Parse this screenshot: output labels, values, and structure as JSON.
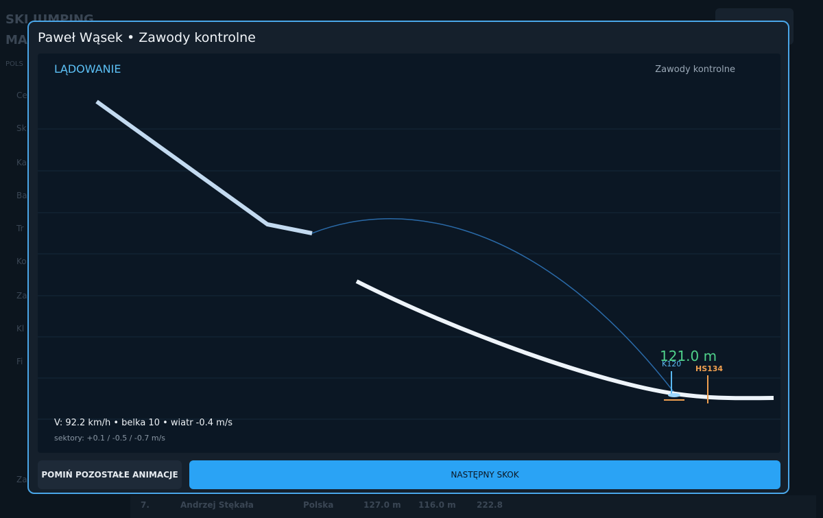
{
  "background": {
    "app_title": [
      "SKI JUMPING",
      "MA"
    ],
    "country_tab": "POLS",
    "sidebar": [
      "Ce",
      "Sk",
      "Ka",
      "Ba",
      "Tr",
      "Ko",
      "Za",
      "Kl",
      "Fi",
      "Za"
    ],
    "table_row": [
      "7.",
      "Andrzej Stękała",
      "Polska",
      "127.0 m",
      "116.0 m",
      "222.8"
    ]
  },
  "modal": {
    "title": "Paweł Wąsek  •  Zawody kontrolne",
    "panel": {
      "phase": "LĄDOWANIE",
      "event": "Zawody kontrolne",
      "distance": "121.0 m",
      "k_point": "K120",
      "hill_size": "HS134",
      "stats": "V: 92.2 km/h  •  belka 10  •  wiatr -0.4 m/s",
      "sectors": "sektory: +0.1 / -0.5 / -0.7 m/s"
    },
    "buttons": {
      "skip": "POMIŃ POZOSTAŁE ANIMACJE",
      "next": "NASTĘPNY SKOK"
    }
  }
}
